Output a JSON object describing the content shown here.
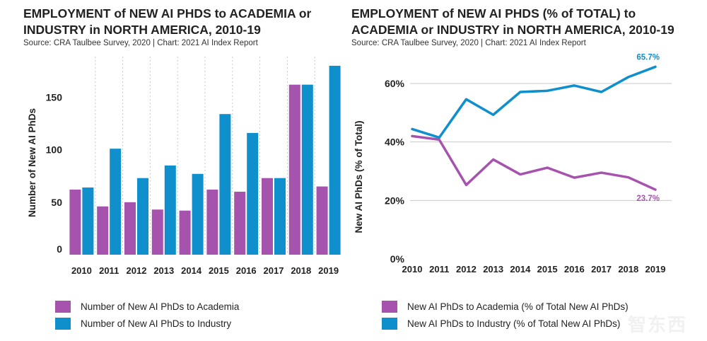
{
  "colors": {
    "academia": "#a653ae",
    "industry": "#0f8fcb",
    "grid": "#c9c9c9"
  },
  "left": {
    "title": "EMPLOYMENT of NEW AI PHDS to ACADEMIA or INDUSTRY in NORTH AMERICA, 2010-19",
    "source": "Source: CRA Taulbee Survey, 2020 | Chart: 2021 AI Index Report",
    "legend": [
      {
        "label": "Number of New AI PhDs to Academia",
        "color": "#a653ae"
      },
      {
        "label": "Number of New AI PhDs to Industry",
        "color": "#0f8fcb"
      }
    ]
  },
  "right": {
    "title": "EMPLOYMENT of NEW AI PHDS (% of TOTAL) to ACADEMIA or INDUSTRY in NORTH AMERICA, 2010-19",
    "source": "Source: CRA Taulbee Survey, 2020 | Chart: 2021 AI Index Report",
    "legend": [
      {
        "label": "New AI PhDs to Academia (% of Total New AI PhDs)",
        "color": "#a653ae"
      },
      {
        "label": "New AI PhDs to Industry (% of Total New AI PhDs)",
        "color": "#0f8fcb"
      }
    ]
  },
  "watermark": "智东西",
  "chart_data": [
    {
      "type": "bar",
      "title": "EMPLOYMENT of NEW AI PHDS to ACADEMIA or INDUSTRY in NORTH AMERICA, 2010-19",
      "subtitle": "Source: CRA Taulbee Survey, 2020 | Chart: 2021 AI Index Report",
      "xlabel": "",
      "ylabel": "Number of New AI PhDs",
      "categories": [
        "2010",
        "2011",
        "2012",
        "2013",
        "2014",
        "2015",
        "2016",
        "2017",
        "2018",
        "2019"
      ],
      "series": [
        {
          "name": "Number of New AI PhDs to Academia",
          "color": "#a653ae",
          "values": [
            62,
            46,
            50,
            43,
            42,
            62,
            60,
            73,
            162,
            65
          ]
        },
        {
          "name": "Number of New AI PhDs to Industry",
          "color": "#0f8fcb",
          "values": [
            64,
            101,
            73,
            85,
            77,
            134,
            116,
            73,
            162,
            180
          ]
        }
      ],
      "yticks": [
        0,
        50,
        100,
        150
      ],
      "ylim": [
        0,
        182
      ],
      "grid": "vertical dotted",
      "legend_position": "bottom"
    },
    {
      "type": "line",
      "title": "EMPLOYMENT of NEW AI PHDS (% of TOTAL) to ACADEMIA or INDUSTRY in NORTH AMERICA, 2010-19",
      "subtitle": "Source: CRA Taulbee Survey, 2020 | Chart: 2021 AI Index Report",
      "xlabel": "",
      "ylabel": "New AI PhDs (% of Total)",
      "x": [
        "2010",
        "2011",
        "2012",
        "2013",
        "2014",
        "2015",
        "2016",
        "2017",
        "2018",
        "2019"
      ],
      "series": [
        {
          "name": "New AI PhDs to Industry (% of Total New AI PhDs)",
          "color": "#0f8fcb",
          "values": [
            44.4,
            41.5,
            54.6,
            49.3,
            57.1,
            57.5,
            59.3,
            57.1,
            62.2,
            65.7
          ]
        },
        {
          "name": "New AI PhDs to Academia (% of Total New AI PhDs)",
          "color": "#a653ae",
          "values": [
            42.0,
            40.8,
            25.3,
            34.0,
            28.9,
            31.2,
            27.8,
            29.5,
            27.9,
            23.7
          ]
        }
      ],
      "annotations": [
        {
          "series": 0,
          "index": 9,
          "text": "65.7%"
        },
        {
          "series": 1,
          "index": 9,
          "text": "23.7%"
        }
      ],
      "yticks": [
        0,
        20,
        40,
        60
      ],
      "ytick_labels": [
        "0%",
        "20%",
        "40%",
        "60%"
      ],
      "ylim": [
        0,
        70
      ],
      "grid": "horizontal solid",
      "legend_position": "bottom"
    }
  ]
}
